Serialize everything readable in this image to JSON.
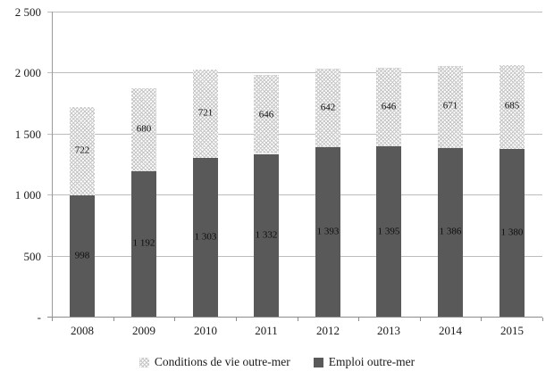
{
  "chart_data": {
    "type": "bar",
    "stacked": true,
    "title": "",
    "xlabel": "",
    "ylabel": "",
    "categories": [
      "2008",
      "2009",
      "2010",
      "2011",
      "2012",
      "2013",
      "2014",
      "2015"
    ],
    "series": [
      {
        "name": "Emploi outre-mer",
        "style": "solid",
        "color": "#595959",
        "values": [
          998,
          1192,
          1303,
          1332,
          1393,
          1395,
          1386,
          1380
        ],
        "labels": [
          "998",
          "1 192",
          "1 303",
          "1 332",
          "1 393",
          "1 395",
          "1 386",
          "1 380"
        ]
      },
      {
        "name": "Conditions de vie outre-mer",
        "style": "hatch",
        "color": "#d9d9d9",
        "values": [
          722,
          680,
          721,
          646,
          642,
          646,
          671,
          685
        ],
        "labels": [
          "722",
          "680",
          "721",
          "646",
          "642",
          "646",
          "671",
          "685"
        ]
      }
    ],
    "ylim": [
      0,
      2500
    ],
    "yticks": [
      0,
      500,
      1000,
      1500,
      2000,
      2500
    ],
    "ytick_labels": [
      "-",
      "500",
      "1 000",
      "1 500",
      "2 000",
      "2 500"
    ],
    "grid": true,
    "legend_position": "bottom",
    "legend": [
      {
        "label": "Conditions de vie outre-mer",
        "swatch": "hatch"
      },
      {
        "label": "Emploi outre-mer",
        "swatch": "solid"
      }
    ]
  },
  "colors": {
    "solid_series": "#595959",
    "hatch_line": "#c6c6c6",
    "gridline": "#bdbdbd",
    "axis": "#8c8c8c",
    "text": "#1a1a1a"
  }
}
